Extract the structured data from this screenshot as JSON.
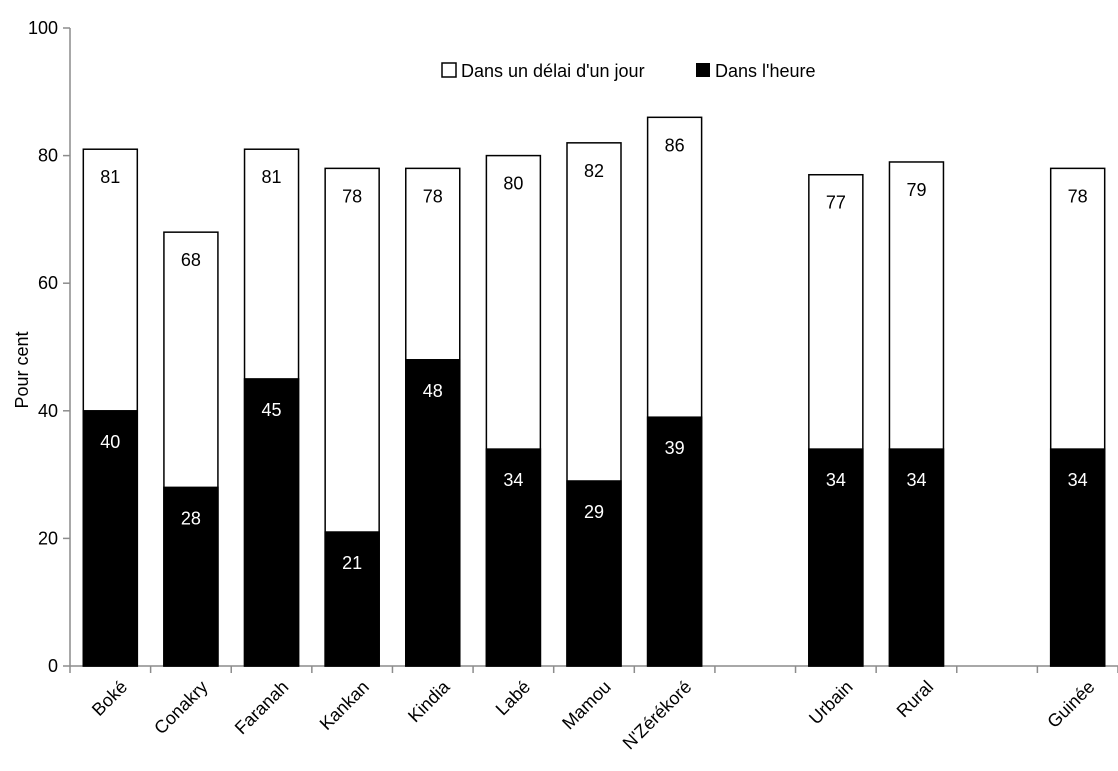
{
  "chart_data": {
    "type": "bar",
    "title": "",
    "xlabel": "",
    "ylabel": "Pour cent",
    "ylim": [
      0,
      100
    ],
    "yticks": [
      0,
      20,
      40,
      60,
      80,
      100
    ],
    "grid": false,
    "legend_position": "top-right",
    "categories": [
      "Boké",
      "Conakry",
      "Faranah",
      "Kankan",
      "Kindia",
      "Labé",
      "Mamou",
      "N'Zérékoré",
      "",
      "Urbain",
      "Rural",
      "",
      "Guinée"
    ],
    "series": [
      {
        "name": "Dans un délai d'un jour",
        "color": "#ffffff",
        "values": [
          81,
          68,
          81,
          78,
          78,
          80,
          82,
          86,
          null,
          77,
          79,
          null,
          78
        ],
        "labels": [
          "81",
          "68",
          "81",
          "78",
          "78",
          "80",
          "82",
          "86",
          "",
          "77",
          "79",
          "",
          "78"
        ]
      },
      {
        "name": "Dans l'heure",
        "color": "#000000",
        "values": [
          40,
          28,
          45,
          21,
          48,
          34,
          29,
          39,
          null,
          34,
          34,
          null,
          34
        ],
        "labels": [
          "40",
          "28",
          "45",
          "21",
          "48",
          "34",
          "29",
          "39",
          "",
          "34",
          "34",
          "",
          "34"
        ]
      }
    ]
  }
}
